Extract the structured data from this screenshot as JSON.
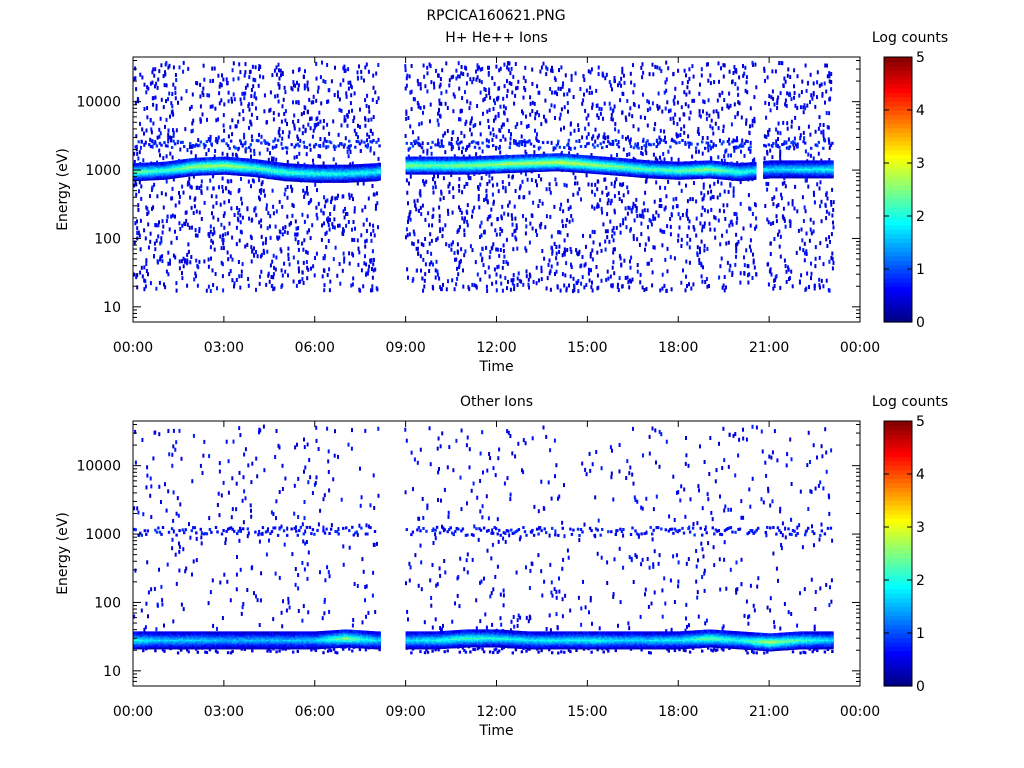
{
  "figure_title": "RPCICA160621.PNG",
  "chart_data": [
    {
      "type": "heatmap",
      "title": "H+ He++ Ions",
      "xlabel": "Time",
      "ylabel": "Energy (eV)",
      "x_ticks": [
        "00:00",
        "03:00",
        "06:00",
        "09:00",
        "12:00",
        "15:00",
        "18:00",
        "21:00",
        "00:00"
      ],
      "x_range_hours": [
        0,
        24
      ],
      "y_scale": "log",
      "y_range": [
        6,
        45000
      ],
      "y_ticks": [
        10,
        100,
        1000,
        10000
      ],
      "y_tick_labels": [
        "10",
        "100",
        "1000",
        "10000"
      ],
      "colorbar": {
        "label": "Log counts",
        "min": 0,
        "max": 5,
        "ticks": [
          "0",
          "1",
          "2",
          "3",
          "4",
          "5"
        ]
      },
      "data_gaps_hours": [
        [
          8.1,
          8.95
        ],
        [
          20.55,
          20.8
        ],
        [
          23.1,
          24
        ]
      ],
      "band": {
        "hours": [
          0.0,
          1.0,
          2.0,
          3.0,
          4.0,
          5.0,
          6.0,
          7.0,
          8.0,
          9.0,
          10.0,
          11.0,
          12.0,
          13.0,
          14.0,
          15.0,
          16.0,
          17.0,
          18.0,
          19.0,
          20.0,
          21.0,
          22.0,
          23.0
        ],
        "energy_eV": [
          1000,
          1050,
          1200,
          1250,
          1150,
          1000,
          950,
          950,
          1000,
          1250,
          1250,
          1250,
          1300,
          1350,
          1400,
          1300,
          1200,
          1100,
          1050,
          1100,
          1000,
          1100,
          1100,
          1100
        ],
        "log_counts": [
          2.5,
          2.2,
          2.7,
          2.8,
          2.4,
          2.2,
          2.1,
          2.0,
          2.0,
          2.6,
          2.5,
          2.6,
          2.7,
          2.8,
          2.9,
          2.8,
          2.5,
          2.3,
          2.4,
          2.6,
          2.2,
          1.8,
          1.9,
          2.0
        ]
      },
      "secondary_bands": [
        {
          "energy_eV": 2500,
          "log_counts": 0.6
        }
      ],
      "background": {
        "energy_eV_range": [
          18,
          40000
        ],
        "log_counts": 0.3,
        "density": "sparse"
      }
    },
    {
      "type": "heatmap",
      "title": "Other Ions",
      "xlabel": "Time",
      "ylabel": "Energy (eV)",
      "x_ticks": [
        "00:00",
        "03:00",
        "06:00",
        "09:00",
        "12:00",
        "15:00",
        "18:00",
        "21:00",
        "00:00"
      ],
      "x_range_hours": [
        0,
        24
      ],
      "y_scale": "log",
      "y_range": [
        6,
        45000
      ],
      "y_ticks": [
        10,
        100,
        1000,
        10000
      ],
      "y_tick_labels": [
        "10",
        "100",
        "1000",
        "10000"
      ],
      "colorbar": {
        "label": "Log counts",
        "min": 0,
        "max": 5,
        "ticks": [
          "0",
          "1",
          "2",
          "3",
          "4",
          "5"
        ]
      },
      "data_gaps_hours": [
        [
          8.1,
          8.95
        ],
        [
          23.1,
          24
        ]
      ],
      "band": {
        "hours": [
          0.0,
          1.0,
          2.0,
          3.0,
          4.0,
          5.0,
          6.0,
          7.0,
          8.0,
          9.0,
          10.0,
          11.0,
          12.0,
          13.0,
          14.0,
          15.0,
          16.0,
          17.0,
          18.0,
          19.0,
          20.0,
          21.0,
          22.0,
          23.0
        ],
        "energy_eV": [
          30,
          30,
          30,
          30,
          30,
          30,
          30,
          32,
          30,
          30,
          30,
          32,
          32,
          30,
          30,
          30,
          30,
          30,
          30,
          32,
          30,
          28,
          30,
          30
        ],
        "log_counts": [
          2.0,
          1.7,
          1.7,
          1.6,
          1.6,
          1.6,
          1.7,
          2.6,
          1.8,
          1.8,
          2.0,
          2.2,
          2.0,
          1.9,
          1.9,
          2.0,
          1.8,
          1.8,
          1.9,
          2.4,
          2.0,
          2.8,
          2.2,
          1.8
        ]
      },
      "secondary_bands": [
        {
          "energy_eV": 1150,
          "log_counts": 0.5
        },
        {
          "energy_eV": 22,
          "log_counts": 0.3
        }
      ],
      "background": {
        "energy_eV_range": [
          40,
          40000
        ],
        "log_counts": 0.3,
        "density": "very sparse"
      }
    }
  ]
}
